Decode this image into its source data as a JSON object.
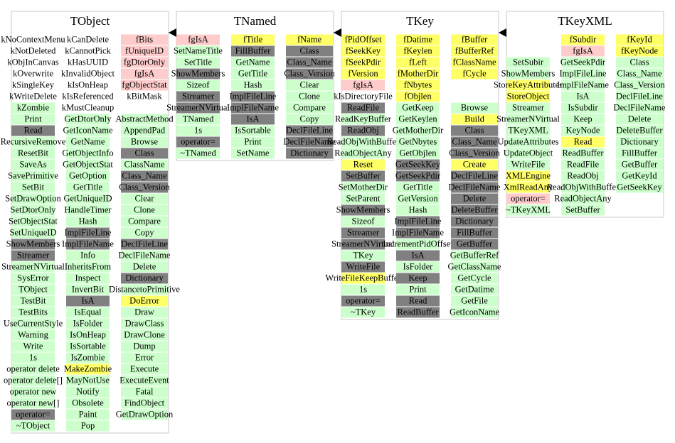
{
  "classes": [
    {
      "title": "TObject",
      "columns": [
        [
          [
            "kNoContextMenu",
            "white"
          ],
          [
            "kNotDeleted",
            "white"
          ],
          [
            "kObjInCanvas",
            "white"
          ],
          [
            "kOverwrite",
            "white"
          ],
          [
            "kSingleKey",
            "white"
          ],
          [
            "kWriteDelete",
            "white"
          ],
          [
            "kZombie",
            "green"
          ],
          [
            "Print",
            "green"
          ],
          [
            "Read",
            "gray"
          ],
          [
            "RecursiveRemove",
            "green"
          ],
          [
            "ResetBit",
            "green"
          ],
          [
            "SaveAs",
            "green"
          ],
          [
            "SavePrimitive",
            "green"
          ],
          [
            "SetBit",
            "green"
          ],
          [
            "SetDrawOption",
            "green"
          ],
          [
            "SetDtorOnly",
            "green"
          ],
          [
            "SetObjectStat",
            "green"
          ],
          [
            "SetUniqueID",
            "green"
          ],
          [
            "ShowMembers",
            "gray"
          ],
          [
            "Streamer",
            "gray"
          ],
          [
            "StreamerNVirtual",
            "green"
          ],
          [
            "SysError",
            "green"
          ],
          [
            "TObject",
            "green"
          ],
          [
            "TestBit",
            "green"
          ],
          [
            "TestBits",
            "green"
          ],
          [
            "UseCurrentStyle",
            "green"
          ],
          [
            "Warning",
            "green"
          ],
          [
            "Write",
            "green"
          ],
          [
            "1s",
            "green"
          ],
          [
            "operator delete",
            "green"
          ],
          [
            "operator delete[]",
            "green"
          ],
          [
            "operator new",
            "green"
          ],
          [
            "operator new[]",
            "green"
          ],
          [
            "operator=",
            "gray"
          ],
          [
            "~TObject",
            "green"
          ]
        ],
        [
          [
            "kCanDelete",
            "white"
          ],
          [
            "kCannotPick",
            "white"
          ],
          [
            "kHasUUID",
            "white"
          ],
          [
            "kInvalidObject",
            "white"
          ],
          [
            "kIsOnHeap",
            "white"
          ],
          [
            "kIsReferenced",
            "white"
          ],
          [
            "kMustCleanup",
            "white"
          ],
          [
            "GetDtorOnly",
            "green"
          ],
          [
            "GetIconName",
            "green"
          ],
          [
            "GetName",
            "green"
          ],
          [
            "GetObjectInfo",
            "green"
          ],
          [
            "GetObjectStat",
            "green"
          ],
          [
            "GetOption",
            "green"
          ],
          [
            "GetTitle",
            "green"
          ],
          [
            "GetUniqueID",
            "green"
          ],
          [
            "HandleTimer",
            "green"
          ],
          [
            "Hash",
            "green"
          ],
          [
            "ImplFileLine",
            "gray"
          ],
          [
            "ImplFileName",
            "gray"
          ],
          [
            "Info",
            "green"
          ],
          [
            "InheritsFrom",
            "green"
          ],
          [
            "Inspect",
            "green"
          ],
          [
            "InvertBit",
            "green"
          ],
          [
            "IsA",
            "gray"
          ],
          [
            "IsEqual",
            "green"
          ],
          [
            "IsFolder",
            "green"
          ],
          [
            "IsOnHeap",
            "green"
          ],
          [
            "IsSortable",
            "green"
          ],
          [
            "IsZombie",
            "green"
          ],
          [
            "MakeZombie",
            "yellow"
          ],
          [
            "MayNotUse",
            "green"
          ],
          [
            "Notify",
            "green"
          ],
          [
            "Obsolete",
            "green"
          ],
          [
            "Paint",
            "green"
          ],
          [
            "Pop",
            "green"
          ]
        ],
        [
          [
            "fBits",
            "pink"
          ],
          [
            "fUniqueID",
            "pink"
          ],
          [
            "fgDtorOnly",
            "pink"
          ],
          [
            "fgIsA",
            "pink"
          ],
          [
            "fgObjectStat",
            "pink"
          ],
          [
            "kBitMask",
            "white"
          ],
          null,
          [
            "AbstractMethod",
            "green"
          ],
          [
            "AppendPad",
            "green"
          ],
          [
            "Browse",
            "green"
          ],
          [
            "Class",
            "gray"
          ],
          [
            "ClassName",
            "green"
          ],
          [
            "Class_Name",
            "gray"
          ],
          [
            "Class_Version",
            "gray"
          ],
          [
            "Clear",
            "green"
          ],
          [
            "Clone",
            "green"
          ],
          [
            "Compare",
            "green"
          ],
          [
            "Copy",
            "green"
          ],
          [
            "DeclFileLine",
            "gray"
          ],
          [
            "DeclFileName",
            "green"
          ],
          [
            "Delete",
            "green"
          ],
          [
            "Dictionary",
            "gray"
          ],
          [
            "DistancetoPrimitive",
            "green"
          ],
          [
            "DoError",
            "yellow"
          ],
          [
            "Draw",
            "green"
          ],
          [
            "DrawClass",
            "green"
          ],
          [
            "DrawClone",
            "green"
          ],
          [
            "Dump",
            "green"
          ],
          [
            "Error",
            "green"
          ],
          [
            "Execute",
            "green"
          ],
          [
            "ExecuteEvent",
            "green"
          ],
          [
            "Fatal",
            "green"
          ],
          [
            "FindObject",
            "green"
          ],
          [
            "GetDrawOption",
            "green"
          ]
        ]
      ]
    },
    {
      "title": "TNamed",
      "columns": [
        [
          [
            "fgIsA",
            "pink"
          ],
          [
            "SetNameTitle",
            "green"
          ],
          [
            "SetTitle",
            "green"
          ],
          [
            "ShowMembers",
            "gray"
          ],
          [
            "Sizeof",
            "green"
          ],
          [
            "Streamer",
            "gray"
          ],
          [
            "StreamerNVirtual",
            "gray"
          ],
          [
            "TNamed",
            "green"
          ],
          [
            "1s",
            "green"
          ],
          [
            "operator=",
            "gray"
          ],
          [
            "~TNamed",
            "green"
          ]
        ],
        [
          [
            "fTitle",
            "yellow"
          ],
          [
            "FillBuffer",
            "gray"
          ],
          [
            "GetName",
            "green"
          ],
          [
            "GetTitle",
            "green"
          ],
          [
            "Hash",
            "green"
          ],
          [
            "ImplFileLine",
            "gray"
          ],
          [
            "ImplFileName",
            "gray"
          ],
          [
            "IsA",
            "gray"
          ],
          [
            "IsSortable",
            "green"
          ],
          [
            "Print",
            "green"
          ],
          [
            "SetName",
            "green"
          ]
        ],
        [
          [
            "fName",
            "yellow"
          ],
          [
            "Class",
            "gray"
          ],
          [
            "Class_Name",
            "gray"
          ],
          [
            "Class_Version",
            "gray"
          ],
          [
            "Clear",
            "green"
          ],
          [
            "Clone",
            "green"
          ],
          [
            "Compare",
            "green"
          ],
          [
            "Copy",
            "green"
          ],
          [
            "DeclFileLine",
            "gray"
          ],
          [
            "DeclFileName",
            "gray"
          ],
          [
            "Dictionary",
            "gray"
          ]
        ]
      ]
    },
    {
      "title": "TKey",
      "columns": [
        [
          [
            "fPidOffset",
            "yellow"
          ],
          [
            "fSeekKey",
            "yellow"
          ],
          [
            "fSeekPdir",
            "yellow"
          ],
          [
            "fVersion",
            "yellow"
          ],
          [
            "fgIsA",
            "pink"
          ],
          [
            "kIsDirectoryFile",
            "white"
          ],
          [
            "ReadFile",
            "gray"
          ],
          [
            "ReadKeyBuffer",
            "green"
          ],
          [
            "ReadObj",
            "gray"
          ],
          [
            "ReadObjWithBuffer",
            "green"
          ],
          [
            "ReadObjectAny",
            "green"
          ],
          [
            "Reset",
            "yellow"
          ],
          [
            "SetBuffer",
            "gray"
          ],
          [
            "SetMotherDir",
            "green"
          ],
          [
            "SetParent",
            "green"
          ],
          [
            "ShowMembers",
            "gray"
          ],
          [
            "Sizeof",
            "green"
          ],
          [
            "Streamer",
            "gray"
          ],
          [
            "StreamerNVirtual",
            "gray"
          ],
          [
            "TKey",
            "green"
          ],
          [
            "WriteFile",
            "gray"
          ],
          [
            "WriteFileKeepBuffer",
            "yellow"
          ],
          [
            "1s",
            "green"
          ],
          [
            "operator=",
            "gray"
          ],
          [
            "~TKey",
            "green"
          ]
        ],
        [
          [
            "fDatime",
            "yellow"
          ],
          [
            "fKeylen",
            "yellow"
          ],
          [
            "fLeft",
            "yellow"
          ],
          [
            "fMotherDir",
            "yellow"
          ],
          [
            "fNbytes",
            "yellow"
          ],
          [
            "fObjlen",
            "yellow"
          ],
          [
            "GetKeep",
            "green"
          ],
          [
            "GetKeylen",
            "green"
          ],
          [
            "GetMotherDir",
            "green"
          ],
          [
            "GetNbytes",
            "green"
          ],
          [
            "GetObjlen",
            "green"
          ],
          [
            "GetSeekKey",
            "gray"
          ],
          [
            "GetSeekPdir",
            "gray"
          ],
          [
            "GetTitle",
            "green"
          ],
          [
            "GetVersion",
            "green"
          ],
          [
            "Hash",
            "green"
          ],
          [
            "ImplFileLine",
            "gray"
          ],
          [
            "ImplFileName",
            "gray"
          ],
          [
            "IncrementPidOffset",
            "green"
          ],
          [
            "IsA",
            "gray"
          ],
          [
            "IsFolder",
            "green"
          ],
          [
            "Keep",
            "gray"
          ],
          [
            "Print",
            "green"
          ],
          [
            "Read",
            "gray"
          ],
          [
            "ReadBuffer",
            "gray"
          ]
        ],
        [
          [
            "fBuffer",
            "yellow"
          ],
          [
            "fBufferRef",
            "yellow"
          ],
          [
            "fClassName",
            "yellow"
          ],
          [
            "fCycle",
            "yellow"
          ],
          null,
          null,
          [
            "Browse",
            "green"
          ],
          [
            "Build",
            "yellow"
          ],
          [
            "Class",
            "gray"
          ],
          [
            "Class_Name",
            "gray"
          ],
          [
            "Class_Version",
            "gray"
          ],
          [
            "Create",
            "yellow"
          ],
          [
            "DeclFileLine",
            "gray"
          ],
          [
            "DeclFileName",
            "gray"
          ],
          [
            "Delete",
            "gray"
          ],
          [
            "DeleteBuffer",
            "gray"
          ],
          [
            "Dictionary",
            "gray"
          ],
          [
            "FillBuffer",
            "gray"
          ],
          [
            "GetBuffer",
            "gray"
          ],
          [
            "GetBufferRef",
            "green"
          ],
          [
            "GetClassName",
            "green"
          ],
          [
            "GetCycle",
            "green"
          ],
          [
            "GetDatime",
            "green"
          ],
          [
            "GetFile",
            "green"
          ],
          [
            "GetIconName",
            "green"
          ]
        ]
      ]
    },
    {
      "title": "TKeyXML",
      "columns": [
        [
          null,
          null,
          [
            "SetSubir",
            "green"
          ],
          [
            "ShowMembers",
            "green"
          ],
          [
            "StoreKeyAttributes",
            "yellow"
          ],
          [
            "StoreObject",
            "yellow"
          ],
          [
            "Streamer",
            "green"
          ],
          [
            "StreamerNVirtual",
            "green"
          ],
          [
            "TKeyXML",
            "green"
          ],
          [
            "UpdateAttributes",
            "green"
          ],
          [
            "UpdateObject",
            "green"
          ],
          [
            "WriteFile",
            "green"
          ],
          [
            "XMLEngine",
            "yellow"
          ],
          [
            "XmlReadAny",
            "yellow"
          ],
          [
            "operator=",
            "pink"
          ],
          [
            "~TKeyXML",
            "green"
          ]
        ],
        [
          [
            "fSubdir",
            "yellow"
          ],
          [
            "fgIsA",
            "pink"
          ],
          [
            "GetSeekPdir",
            "green"
          ],
          [
            "ImplFileLine",
            "green"
          ],
          [
            "ImplFileName",
            "green"
          ],
          [
            "IsA",
            "green"
          ],
          [
            "IsSubdir",
            "green"
          ],
          [
            "Keep",
            "green"
          ],
          [
            "KeyNode",
            "green"
          ],
          [
            "Read",
            "yellow"
          ],
          [
            "ReadBuffer",
            "green"
          ],
          [
            "ReadFile",
            "green"
          ],
          [
            "ReadObj",
            "green"
          ],
          [
            "ReadObjWithBuffer",
            "green"
          ],
          [
            "ReadObjectAny",
            "green"
          ],
          [
            "SetBuffer",
            "green"
          ]
        ],
        [
          [
            "fKeyId",
            "yellow"
          ],
          [
            "fKeyNode",
            "yellow"
          ],
          [
            "Class",
            "green"
          ],
          [
            "Class_Name",
            "green"
          ],
          [
            "Class_Version",
            "green"
          ],
          [
            "DeclFileLine",
            "green"
          ],
          [
            "DeclFileName",
            "green"
          ],
          [
            "Delete",
            "green"
          ],
          [
            "DeleteBuffer",
            "green"
          ],
          [
            "Dictionary",
            "green"
          ],
          [
            "FillBuffer",
            "green"
          ],
          [
            "GetBuffer",
            "green"
          ],
          [
            "GetKeyId",
            "green"
          ],
          [
            "GetSeekKey",
            "green"
          ]
        ]
      ]
    }
  ]
}
